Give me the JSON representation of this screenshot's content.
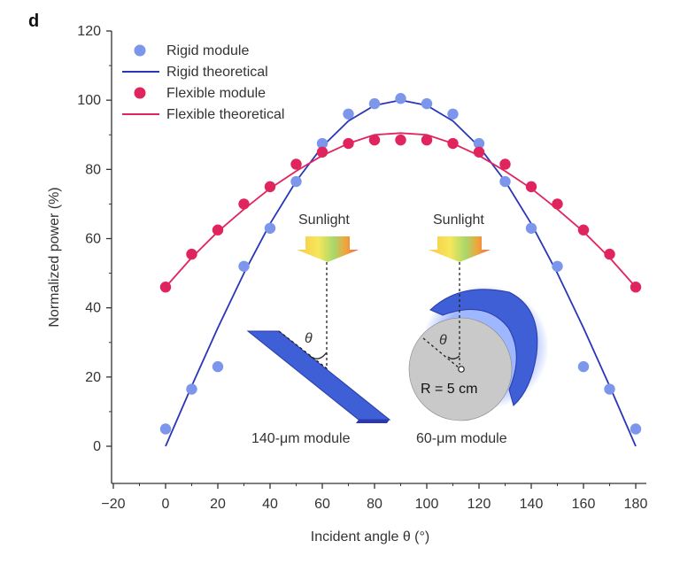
{
  "panel_label": "d",
  "colors": {
    "rigid": "#7b96ea",
    "rigid_line": "#2a36b8",
    "flexible": "#e0245e",
    "flexible_line": "#e0245e",
    "module_blue": "#3f5fd6",
    "module_dark": "#2a3aa8",
    "cylinder_face": "#c9c9c9",
    "axis": "#333333"
  },
  "chart_data": {
    "type": "scatter",
    "xlabel": "Incident angle θ (°)",
    "ylabel": "Normalized power (%)",
    "xlim": [
      -20,
      185
    ],
    "ylim": [
      -10,
      120
    ],
    "x_ticks": [
      -20,
      0,
      20,
      40,
      60,
      80,
      100,
      120,
      140,
      160,
      180
    ],
    "y_ticks": [
      0,
      20,
      40,
      60,
      80,
      100,
      120
    ],
    "grid": false,
    "legend_position": "top-left",
    "series": [
      {
        "name": "Rigid module",
        "kind": "scatter",
        "color_key": "rigid",
        "x": [
          0,
          10,
          20,
          30,
          40,
          50,
          60,
          70,
          80,
          90,
          100,
          110,
          120,
          130,
          140,
          150,
          160,
          170,
          180
        ],
        "y": [
          5,
          16.5,
          23,
          52,
          63,
          76.5,
          87.5,
          96,
          99,
          100.5,
          99,
          96,
          87.5,
          76.5,
          63,
          52,
          23,
          16.5,
          5
        ]
      },
      {
        "name": "Rigid theoretical",
        "kind": "line",
        "color_key": "rigid_line",
        "x": [
          0,
          10,
          20,
          30,
          40,
          50,
          60,
          70,
          80,
          90,
          100,
          110,
          120,
          130,
          140,
          150,
          160,
          170,
          180
        ],
        "y": [
          0,
          17.4,
          34.2,
          50,
          64.3,
          76.6,
          86.6,
          94,
          98.5,
          100,
          98.5,
          94,
          86.6,
          76.6,
          64.3,
          50,
          34.2,
          17.4,
          0
        ]
      },
      {
        "name": "Flexible module",
        "kind": "scatter",
        "color_key": "flexible",
        "x": [
          0,
          10,
          20,
          30,
          40,
          50,
          60,
          70,
          80,
          90,
          100,
          110,
          120,
          130,
          140,
          150,
          160,
          170,
          180
        ],
        "y": [
          46,
          55.5,
          62.5,
          70,
          75,
          81.5,
          85,
          87.5,
          88.5,
          88.5,
          88.5,
          87.5,
          85,
          81.5,
          75,
          70,
          62.5,
          55.5,
          46
        ]
      },
      {
        "name": "Flexible theoretical",
        "kind": "line",
        "color_key": "flexible_line",
        "x": [
          0,
          10,
          20,
          30,
          40,
          50,
          60,
          70,
          80,
          90,
          100,
          110,
          120,
          130,
          140,
          150,
          160,
          170,
          180
        ],
        "y": [
          46,
          54.5,
          62,
          68.5,
          74.5,
          79.5,
          84,
          87.5,
          90,
          90.5,
          90,
          87.5,
          84,
          79.5,
          74.5,
          68.5,
          62,
          54.5,
          46
        ]
      }
    ]
  },
  "insets": {
    "left": {
      "sunlight_label": "Sunlight",
      "angle_label": "θ",
      "caption": "140-μm module"
    },
    "right": {
      "sunlight_label": "Sunlight",
      "angle_label": "θ",
      "radius_label": "R = 5 cm",
      "caption": "60-μm module"
    }
  }
}
